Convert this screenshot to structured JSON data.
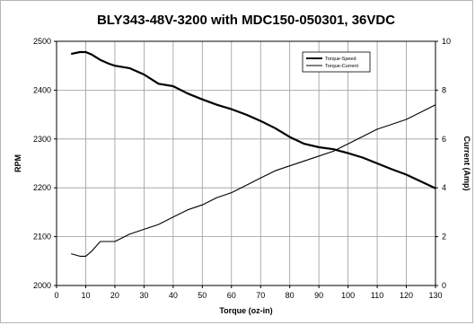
{
  "chart_data": {
    "type": "line",
    "title": "BLY343-48V-3200 with MDC150-050301, 36VDC",
    "xlabel": "Torque (oz-in)",
    "ylabel": "RPM",
    "y2label": "Current (Amp)",
    "xlim": [
      0,
      130
    ],
    "ylim": [
      2000,
      2500
    ],
    "y2lim": [
      0,
      10
    ],
    "x_ticks": [
      0,
      10,
      20,
      30,
      40,
      50,
      60,
      70,
      80,
      90,
      100,
      110,
      120,
      130
    ],
    "y_ticks": [
      2000,
      2100,
      2200,
      2300,
      2400,
      2500
    ],
    "y2_ticks": [
      0,
      2,
      4,
      6,
      8,
      10
    ],
    "grid": true,
    "legend_position": "top-right",
    "series": [
      {
        "name": "Torque-Speed",
        "axis": "left",
        "color": "#000000",
        "x": [
          5,
          8,
          10,
          12,
          15,
          18,
          20,
          25,
          30,
          35,
          40,
          45,
          50,
          55,
          60,
          65,
          70,
          75,
          80,
          85,
          90,
          95,
          100,
          105,
          110,
          115,
          120,
          125,
          130
        ],
        "y": [
          2474,
          2478,
          2478,
          2473,
          2462,
          2454,
          2450,
          2445,
          2432,
          2413,
          2408,
          2393,
          2381,
          2370,
          2361,
          2350,
          2337,
          2322,
          2304,
          2290,
          2283,
          2279,
          2271,
          2262,
          2250,
          2238,
          2227,
          2213,
          2199
        ]
      },
      {
        "name": "Torque-Current",
        "axis": "right",
        "color": "#000000",
        "x": [
          5,
          8,
          10,
          12,
          15,
          18,
          20,
          25,
          30,
          35,
          40,
          45,
          50,
          55,
          60,
          65,
          70,
          75,
          80,
          85,
          90,
          95,
          100,
          105,
          110,
          115,
          120,
          125,
          130
        ],
        "y": [
          1.3,
          1.2,
          1.2,
          1.4,
          1.8,
          1.8,
          1.8,
          2.1,
          2.3,
          2.5,
          2.8,
          3.1,
          3.3,
          3.6,
          3.8,
          4.1,
          4.4,
          4.7,
          4.9,
          5.1,
          5.3,
          5.5,
          5.8,
          6.1,
          6.4,
          6.6,
          6.8,
          7.1,
          7.4
        ]
      }
    ]
  }
}
